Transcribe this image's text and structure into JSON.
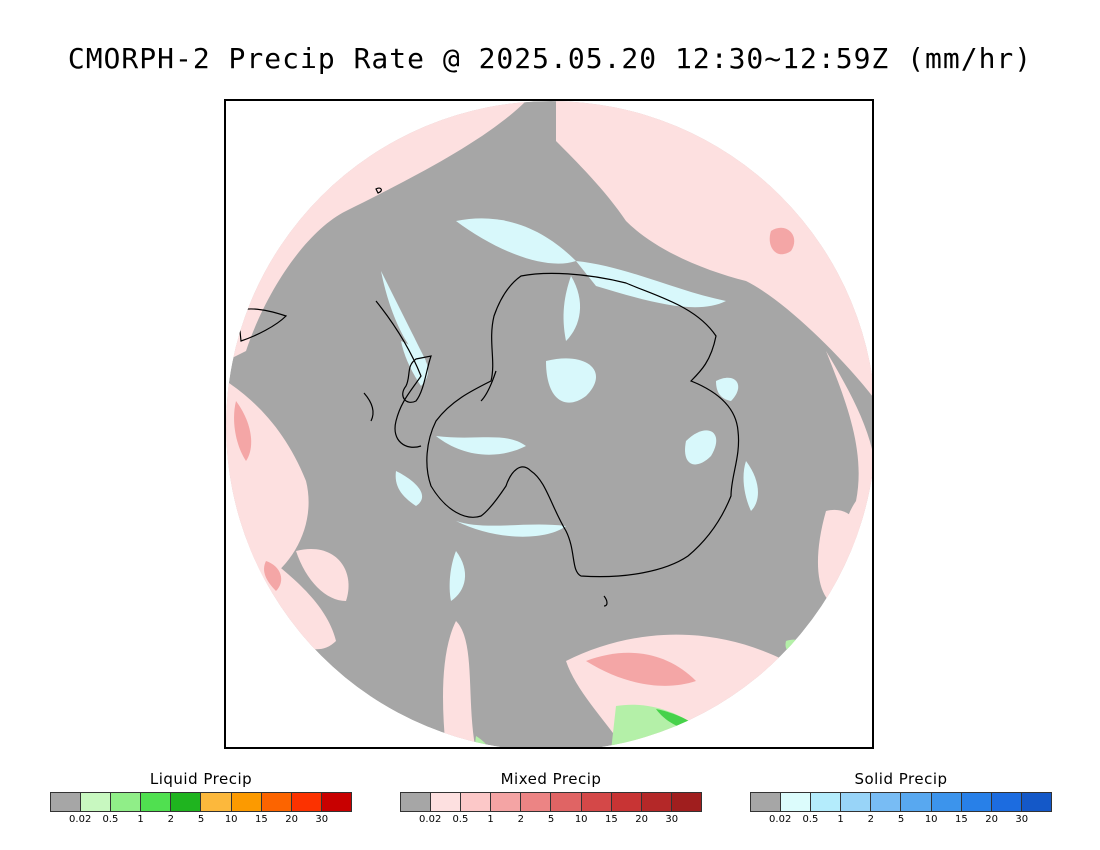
{
  "title": "CMORPH-2 Precip Rate @ 2025.05.20 12:30~12:59Z (mm/hr)",
  "map": {
    "projection": "south-polar-stereographic",
    "colors": {
      "no_data_background": "#a6a6a6",
      "ocean_mixed_light": "#fde0e0",
      "mixed_medium": "#f4a6a6",
      "solid_light": "#d8f8fb",
      "liquid_light": "#b4f0a8",
      "liquid_medium": "#46d24a",
      "coastline": "#000000"
    }
  },
  "legends": [
    {
      "title": "Liquid Precip",
      "swatches": [
        "#a6a6a6",
        "#c8f8c0",
        "#90ee88",
        "#50e050",
        "#1fb41f",
        "#fcb83c",
        "#fc9a00",
        "#fc6400",
        "#fc3200",
        "#c80000"
      ],
      "ticks": [
        "0.02",
        "0.5",
        "1",
        "2",
        "5",
        "10",
        "15",
        "20",
        "30"
      ]
    },
    {
      "title": "Mixed Precip",
      "swatches": [
        "#a6a6a6",
        "#fde0e0",
        "#fcc8c8",
        "#f4a4a4",
        "#ec8484",
        "#e06464",
        "#d44848",
        "#c83434",
        "#b42828",
        "#a01e1e"
      ],
      "ticks": [
        "0.02",
        "0.5",
        "1",
        "2",
        "5",
        "10",
        "15",
        "20",
        "30"
      ]
    },
    {
      "title": "Solid Precip",
      "swatches": [
        "#a6a6a6",
        "#dcfcfc",
        "#b4ecfc",
        "#98d4f8",
        "#78bcf4",
        "#58a8f0",
        "#3c94ec",
        "#2880e8",
        "#1c6ce0",
        "#1458c8"
      ],
      "ticks": [
        "0.02",
        "0.5",
        "1",
        "2",
        "5",
        "10",
        "15",
        "20",
        "30"
      ]
    }
  ]
}
